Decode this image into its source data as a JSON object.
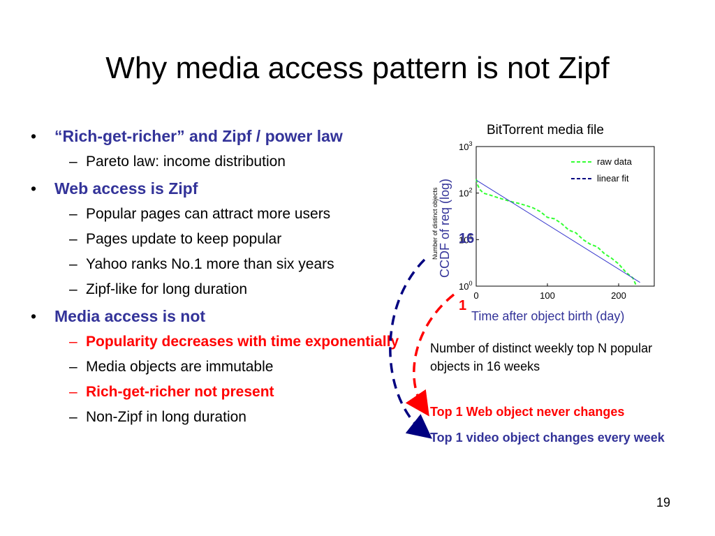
{
  "slide": {
    "title": "Why media access pattern is not Zipf",
    "page_number": "19"
  },
  "bullets": [
    {
      "text": "“Rich-get-richer” and Zipf / power law",
      "subs": [
        {
          "text": "Pareto law: income distribution",
          "highlight": false
        }
      ]
    },
    {
      "text": "Web access is Zipf",
      "subs": [
        {
          "text": "Popular pages can attract more users",
          "highlight": false
        },
        {
          "text": "Pages update to keep popular",
          "highlight": false
        },
        {
          "text": "Yahoo ranks No.1 more than six years",
          "highlight": false
        },
        {
          "text": "Zipf-like for long duration",
          "highlight": false
        }
      ]
    },
    {
      "text": "Media access is not",
      "subs": [
        {
          "text": "Popularity decreases with time exponentially",
          "highlight": true
        },
        {
          "text": "Media objects are immutable",
          "highlight": false
        },
        {
          "text": "Rich-get-richer not present",
          "highlight": true
        },
        {
          "text": "Non-Zipf in long duration",
          "highlight": false
        }
      ]
    }
  ],
  "figure": {
    "chart_title": "BitTorrent media file",
    "caption": "Number of distinct weekly top N popular objects in 16 weeks",
    "web_note": "Top 1 Web object never changes",
    "video_note": "Top 1 video object changes every week",
    "overlay_labels": {
      "value_16": "16",
      "value_1": "1"
    },
    "colors": {
      "raw": "#33ff33",
      "fit": "#3333cc",
      "title_text": "#333399",
      "highlight": "#ff0000"
    }
  },
  "chart_data": {
    "type": "line",
    "xlabel": "Time after object birth (day)",
    "ylabel": "CCDF of req (log)",
    "ylabel_small": "Number of distinct objects",
    "x_ticks": [
      "0",
      "100",
      "200"
    ],
    "y_ticks": [
      {
        "base": "10",
        "exp": "0"
      },
      {
        "base": "10",
        "exp": "1"
      },
      {
        "base": "10",
        "exp": "2"
      },
      {
        "base": "10",
        "exp": "3"
      }
    ],
    "xlim": [
      0,
      250
    ],
    "ylim_log10": [
      0,
      3
    ],
    "series": [
      {
        "name": "raw data",
        "style": "dashed",
        "color": "#33ff33",
        "x": [
          0,
          2,
          5,
          10,
          15,
          20,
          30,
          40,
          50,
          60,
          70,
          80,
          90,
          100,
          110,
          120,
          130,
          140,
          150,
          160,
          170,
          180,
          190,
          200,
          210,
          220,
          225
        ],
        "y": [
          200,
          150,
          120,
          100,
          95,
          90,
          80,
          72,
          65,
          60,
          54,
          48,
          40,
          30,
          28,
          22,
          16,
          14,
          10,
          8,
          7,
          5,
          4,
          3,
          2,
          1.5,
          1
        ]
      },
      {
        "name": "linear fit",
        "style": "solid",
        "color": "#3333cc",
        "x": [
          0,
          230
        ],
        "y": [
          190,
          1.2
        ]
      }
    ],
    "legend": "top-right"
  }
}
